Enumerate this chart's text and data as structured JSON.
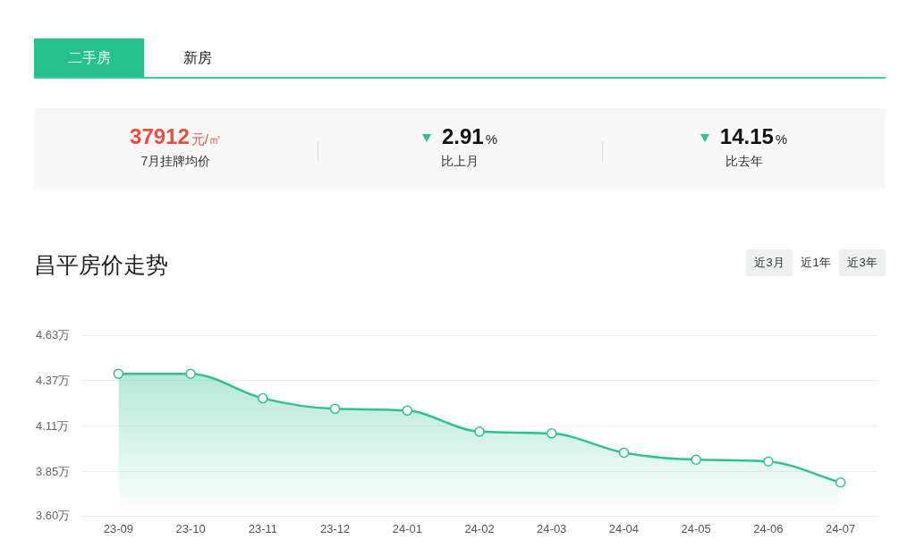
{
  "chart_data": {
    "type": "area",
    "title": "昌平房价走势",
    "categories": [
      "23-09",
      "23-10",
      "23-11",
      "23-12",
      "24-01",
      "24-02",
      "24-03",
      "24-04",
      "24-05",
      "24-06",
      "24-07"
    ],
    "series": [
      {
        "color": "#2ec28e",
        "values": [
          4.41,
          4.41,
          4.27,
          4.21,
          4.2,
          4.08,
          4.07,
          3.96,
          3.92,
          3.91,
          3.79
        ]
      }
    ],
    "ylim": [
      3.6,
      4.63
    ],
    "yticks": [
      {
        "value": 3.6,
        "label": "3.60万"
      },
      {
        "value": 3.85,
        "label": "3.85万"
      },
      {
        "value": 4.11,
        "label": "4.11万"
      },
      {
        "value": 4.37,
        "label": "4.37万"
      },
      {
        "value": 4.63,
        "label": "4.63万"
      }
    ],
    "grid": "y",
    "marker": "circle",
    "annotations": [
      "二手房",
      "新房",
      "37912",
      "元/㎡",
      "7月挂牌均价",
      "2.91",
      "%",
      "比上月",
      "14.15",
      "%",
      "比去年",
      "近3月",
      "近1年",
      "近3年"
    ]
  }
}
